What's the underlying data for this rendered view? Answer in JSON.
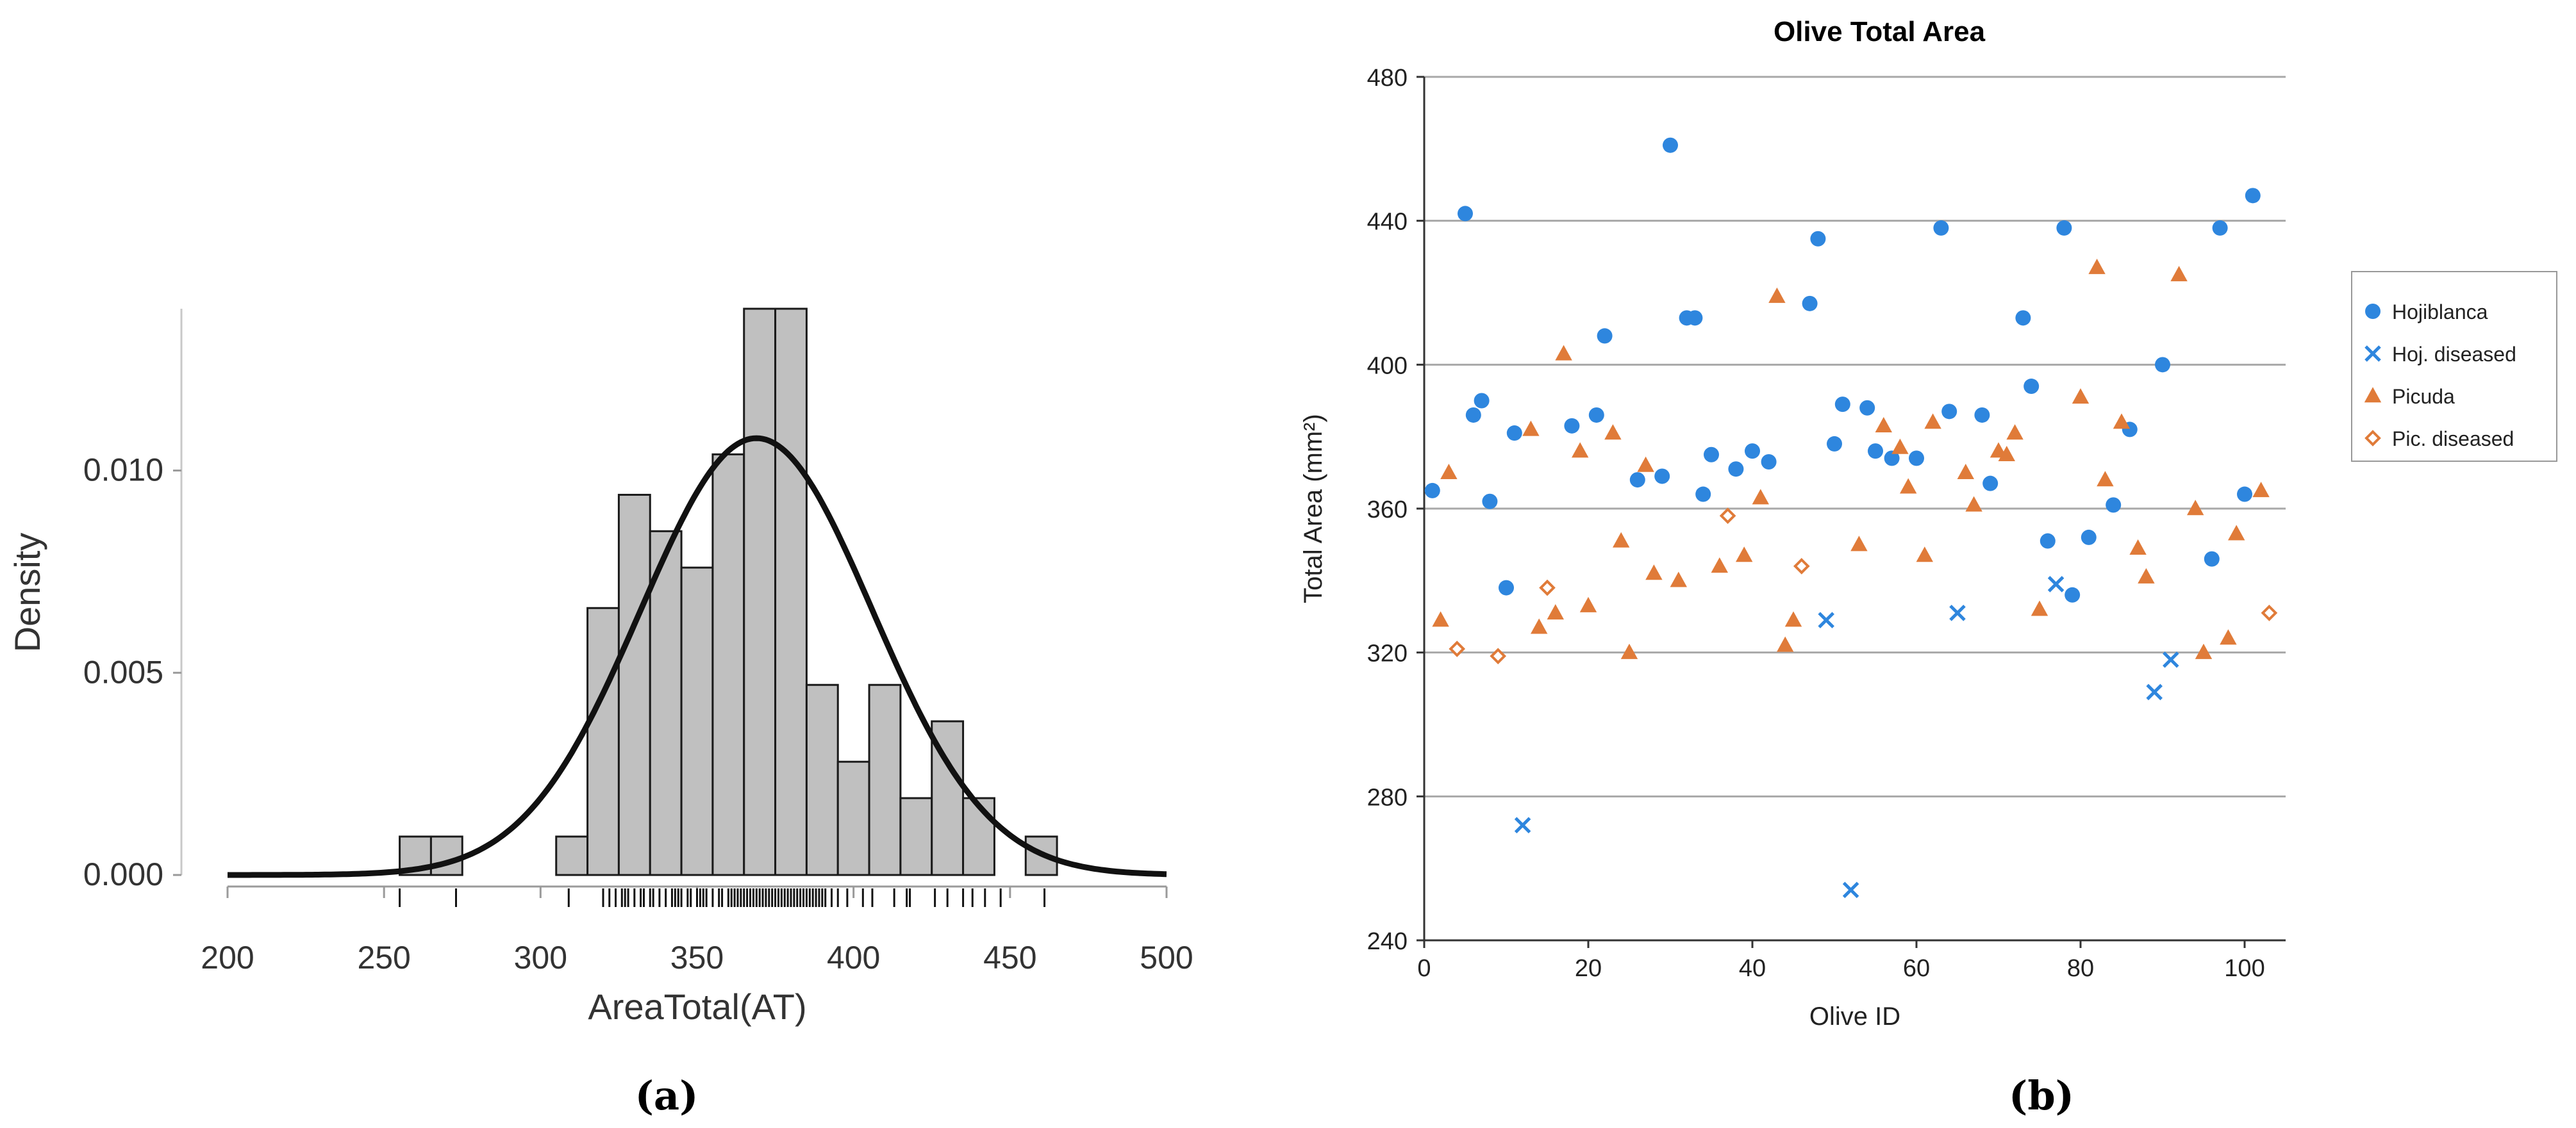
{
  "panels": [
    {
      "label": "(a)",
      "chart_data": {
        "type": "bar",
        "subtype": "histogram-with-density-and-rug",
        "title": "",
        "xlabel": "AreaTotal(AT)",
        "ylabel": "Density",
        "xlim": [
          200,
          500
        ],
        "ylim": [
          0,
          0.014
        ],
        "xticks": [
          200,
          250,
          300,
          350,
          400,
          450,
          500
        ],
        "yticks": [
          "0.000",
          "0.005",
          "0.010"
        ],
        "bin_width": 10,
        "bins": [
          {
            "start": 255,
            "value": 0.00095
          },
          {
            "start": 265,
            "value": 0.00095
          },
          {
            "start": 305,
            "value": 0.00095
          },
          {
            "start": 315,
            "value": 0.0066
          },
          {
            "start": 325,
            "value": 0.0094
          },
          {
            "start": 335,
            "value": 0.0085
          },
          {
            "start": 345,
            "value": 0.0076
          },
          {
            "start": 355,
            "value": 0.0104
          },
          {
            "start": 365,
            "value": 0.0142
          },
          {
            "start": 375,
            "value": 0.0142
          },
          {
            "start": 385,
            "value": 0.0047
          },
          {
            "start": 395,
            "value": 0.0028
          },
          {
            "start": 405,
            "value": 0.0047
          },
          {
            "start": 415,
            "value": 0.0019
          },
          {
            "start": 425,
            "value": 0.0038
          },
          {
            "start": 435,
            "value": 0.0019
          },
          {
            "start": 455,
            "value": 0.00095
          }
        ],
        "density_curve": {
          "type": "normal",
          "mean": 369,
          "sd": 37,
          "peak": 0.0108
        },
        "rug": [
          255,
          273,
          309,
          320,
          322,
          324,
          326,
          327,
          328,
          330,
          332,
          333,
          335,
          336,
          338,
          340,
          342,
          343,
          344,
          345,
          347,
          348,
          350,
          351,
          352,
          353,
          355,
          357,
          358,
          360,
          361,
          362,
          363,
          364,
          365,
          366,
          367,
          368,
          369,
          370,
          371,
          372,
          373,
          374,
          375,
          376,
          377,
          378,
          379,
          380,
          381,
          382,
          383,
          384,
          385,
          386,
          387,
          388,
          389,
          390,
          391,
          393,
          395,
          398,
          403,
          406,
          413,
          417,
          418,
          426,
          430,
          435,
          438,
          442,
          447,
          461
        ]
      }
    },
    {
      "label": "(b)",
      "chart_data": {
        "type": "scatter",
        "title": "Olive Total  Area",
        "xlabel": "Olive ID",
        "ylabel": "Total Area (mm²)",
        "xlim": [
          0,
          105
        ],
        "ylim": [
          240,
          480
        ],
        "xticks": [
          0,
          20,
          40,
          60,
          80,
          100
        ],
        "yticks": [
          240,
          280,
          320,
          360,
          400,
          440,
          480
        ],
        "grid": "horizontal",
        "legend_position": "right",
        "series": [
          {
            "name": "Hojiblanca",
            "marker": "circle",
            "color": "#2e86de",
            "points": [
              [
                1,
                365
              ],
              [
                5,
                442
              ],
              [
                6,
                386
              ],
              [
                7,
                390
              ],
              [
                8,
                362
              ],
              [
                10,
                338
              ],
              [
                11,
                381
              ],
              [
                18,
                383
              ],
              [
                21,
                386
              ],
              [
                22,
                408
              ],
              [
                26,
                368
              ],
              [
                29,
                369
              ],
              [
                30,
                461
              ],
              [
                32,
                413
              ],
              [
                33,
                413
              ],
              [
                34,
                364
              ],
              [
                35,
                375
              ],
              [
                38,
                371
              ],
              [
                40,
                376
              ],
              [
                42,
                373
              ],
              [
                47,
                417
              ],
              [
                48,
                435
              ],
              [
                50,
                378
              ],
              [
                51,
                389
              ],
              [
                54,
                388
              ],
              [
                55,
                376
              ],
              [
                57,
                374
              ],
              [
                60,
                374
              ],
              [
                63,
                438
              ],
              [
                64,
                387
              ],
              [
                68,
                386
              ],
              [
                69,
                367
              ],
              [
                73,
                413
              ],
              [
                74,
                394
              ],
              [
                76,
                351
              ],
              [
                78,
                438
              ],
              [
                79,
                336
              ],
              [
                81,
                352
              ],
              [
                84,
                361
              ],
              [
                86,
                382
              ],
              [
                90,
                400
              ],
              [
                96,
                346
              ],
              [
                97,
                438
              ],
              [
                100,
                364
              ],
              [
                101,
                447
              ]
            ]
          },
          {
            "name": "Hoj. diseased",
            "marker": "x",
            "color": "#2e86de",
            "points": [
              [
                12,
                272
              ],
              [
                49,
                329
              ],
              [
                52,
                254
              ],
              [
                65,
                331
              ],
              [
                77,
                339
              ],
              [
                89,
                309
              ],
              [
                91,
                318
              ]
            ]
          },
          {
            "name": "Picuda",
            "marker": "triangle",
            "color": "#e07b39",
            "points": [
              [
                2,
                329
              ],
              [
                3,
                370
              ],
              [
                13,
                382
              ],
              [
                14,
                327
              ],
              [
                16,
                331
              ],
              [
                17,
                403
              ],
              [
                19,
                376
              ],
              [
                20,
                333
              ],
              [
                23,
                381
              ],
              [
                24,
                351
              ],
              [
                25,
                320
              ],
              [
                27,
                372
              ],
              [
                28,
                342
              ],
              [
                31,
                340
              ],
              [
                36,
                344
              ],
              [
                39,
                347
              ],
              [
                41,
                363
              ],
              [
                43,
                419
              ],
              [
                44,
                322
              ],
              [
                45,
                329
              ],
              [
                53,
                350
              ],
              [
                56,
                383
              ],
              [
                58,
                377
              ],
              [
                59,
                366
              ],
              [
                61,
                347
              ],
              [
                62,
                384
              ],
              [
                66,
                370
              ],
              [
                67,
                361
              ],
              [
                70,
                376
              ],
              [
                71,
                375
              ],
              [
                72,
                381
              ],
              [
                75,
                332
              ],
              [
                80,
                391
              ],
              [
                82,
                427
              ],
              [
                83,
                368
              ],
              [
                85,
                384
              ],
              [
                87,
                349
              ],
              [
                88,
                341
              ],
              [
                92,
                425
              ],
              [
                94,
                360
              ],
              [
                95,
                320
              ],
              [
                98,
                324
              ],
              [
                99,
                353
              ],
              [
                102,
                365
              ]
            ]
          },
          {
            "name": "Pic. diseased",
            "marker": "diamond-open",
            "color": "#e07b39",
            "points": [
              [
                4,
                321
              ],
              [
                9,
                319
              ],
              [
                15,
                338
              ],
              [
                37,
                358
              ],
              [
                46,
                344
              ],
              [
                103,
                331
              ]
            ]
          }
        ]
      }
    }
  ]
}
